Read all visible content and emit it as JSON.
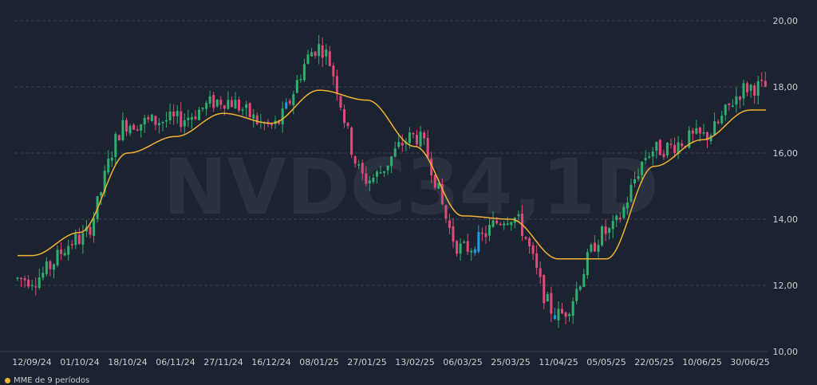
{
  "watermark": "NVDC34,1D",
  "colors": {
    "background": "#1c2330",
    "up": "#2fae6e",
    "down": "#e04a7a",
    "highlight": "#1f9be6",
    "ma_line": "#f2b233",
    "grid": "#3a4352",
    "text": "#c9ced6"
  },
  "legend": {
    "label": "MME de 9 períodos"
  },
  "chart_data": {
    "type": "candlestick",
    "title": "",
    "ylim": [
      10,
      20
    ],
    "yticks": [
      "10,00",
      "12,00",
      "14,00",
      "16,00",
      "18,00",
      "20,00"
    ],
    "xticks": [
      "12/09/24",
      "01/10/24",
      "18/10/24",
      "06/11/24",
      "27/11/24",
      "16/12/24",
      "08/01/25",
      "27/01/25",
      "13/02/25",
      "06/03/25",
      "25/03/25",
      "11/04/25",
      "05/05/25",
      "22/05/25",
      "10/06/25",
      "30/06/25"
    ],
    "grid": true,
    "moving_average": {
      "name": "MME de 9 períodos",
      "points": [
        [
          "12/09/24",
          12.9
        ],
        [
          "01/10/24",
          13.6
        ],
        [
          "18/10/24",
          16.0
        ],
        [
          "06/11/24",
          16.5
        ],
        [
          "27/11/24",
          17.2
        ],
        [
          "16/12/24",
          16.9
        ],
        [
          "08/01/25",
          17.9
        ],
        [
          "27/01/25",
          17.6
        ],
        [
          "13/02/25",
          16.2
        ],
        [
          "06/03/25",
          14.1
        ],
        [
          "25/03/25",
          14.0
        ],
        [
          "11/04/25",
          12.8
        ],
        [
          "05/05/25",
          12.8
        ],
        [
          "22/05/25",
          15.6
        ],
        [
          "10/06/25",
          16.4
        ],
        [
          "30/06/25",
          17.3
        ]
      ]
    },
    "price_path": [
      [
        "12/09/24",
        12.2
      ],
      [
        "01/10/24",
        13.4
      ],
      [
        "18/10/24",
        16.9
      ],
      [
        "06/11/24",
        17.0
      ],
      [
        "27/11/24",
        17.6
      ],
      [
        "16/12/24",
        16.8
      ],
      [
        "08/01/25",
        19.2
      ],
      [
        "27/01/25",
        15.2
      ],
      [
        "13/02/25",
        16.5
      ],
      [
        "06/03/25",
        13.1
      ],
      [
        "25/03/25",
        14.1
      ],
      [
        "11/04/25",
        11.1
      ],
      [
        "05/05/25",
        13.6
      ],
      [
        "22/05/25",
        16.1
      ],
      [
        "10/06/25",
        16.5
      ],
      [
        "30/06/25",
        18.0
      ]
    ]
  }
}
